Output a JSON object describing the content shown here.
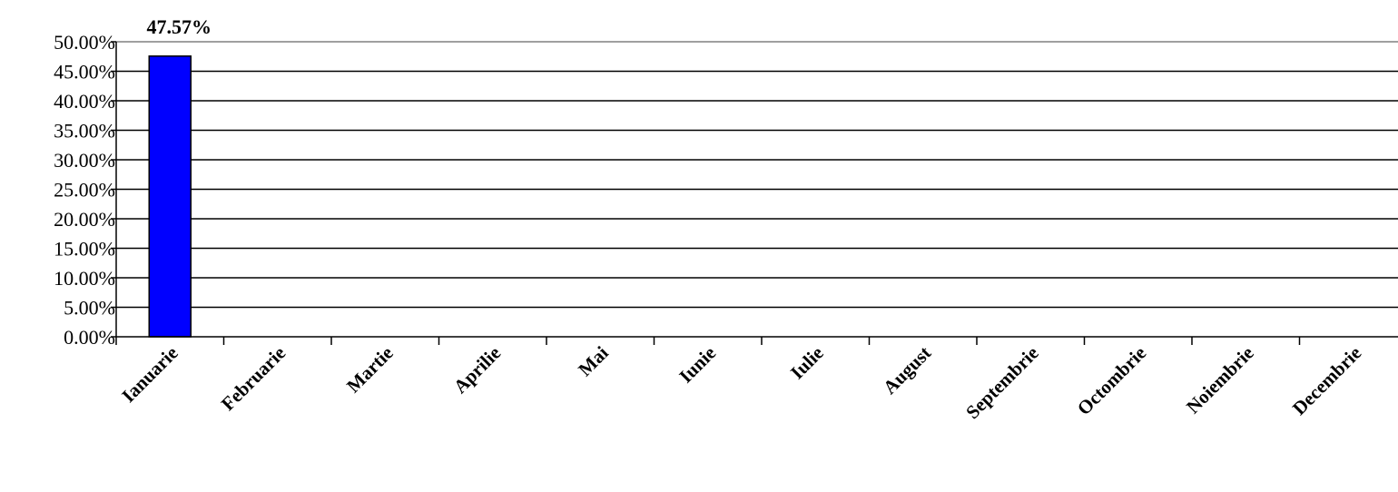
{
  "chart_data": {
    "type": "bar",
    "categories": [
      "Ianuarie",
      "Februarie",
      "Martie",
      "Aprilie",
      "Mai",
      "Iunie",
      "Iulie",
      "August",
      "Septembrie",
      "Octombrie",
      "Noiembrie",
      "Decembrie"
    ],
    "values": [
      47.57,
      null,
      null,
      null,
      null,
      null,
      null,
      null,
      null,
      null,
      null,
      null
    ],
    "data_labels": [
      "47.57%",
      "",
      "",
      "",
      "",
      "",
      "",
      "",
      "",
      "",
      "",
      ""
    ],
    "y_ticks": [
      "0.00%",
      "5.00%",
      "10.00%",
      "15.00%",
      "20.00%",
      "25.00%",
      "30.00%",
      "35.00%",
      "40.00%",
      "45.00%",
      "50.00%"
    ],
    "ylim": [
      0,
      50
    ],
    "y_step": 5,
    "grid": true,
    "bar_color": "#0000ff",
    "bar_edge_color": "#000000",
    "title": "",
    "xlabel": "",
    "ylabel": ""
  }
}
